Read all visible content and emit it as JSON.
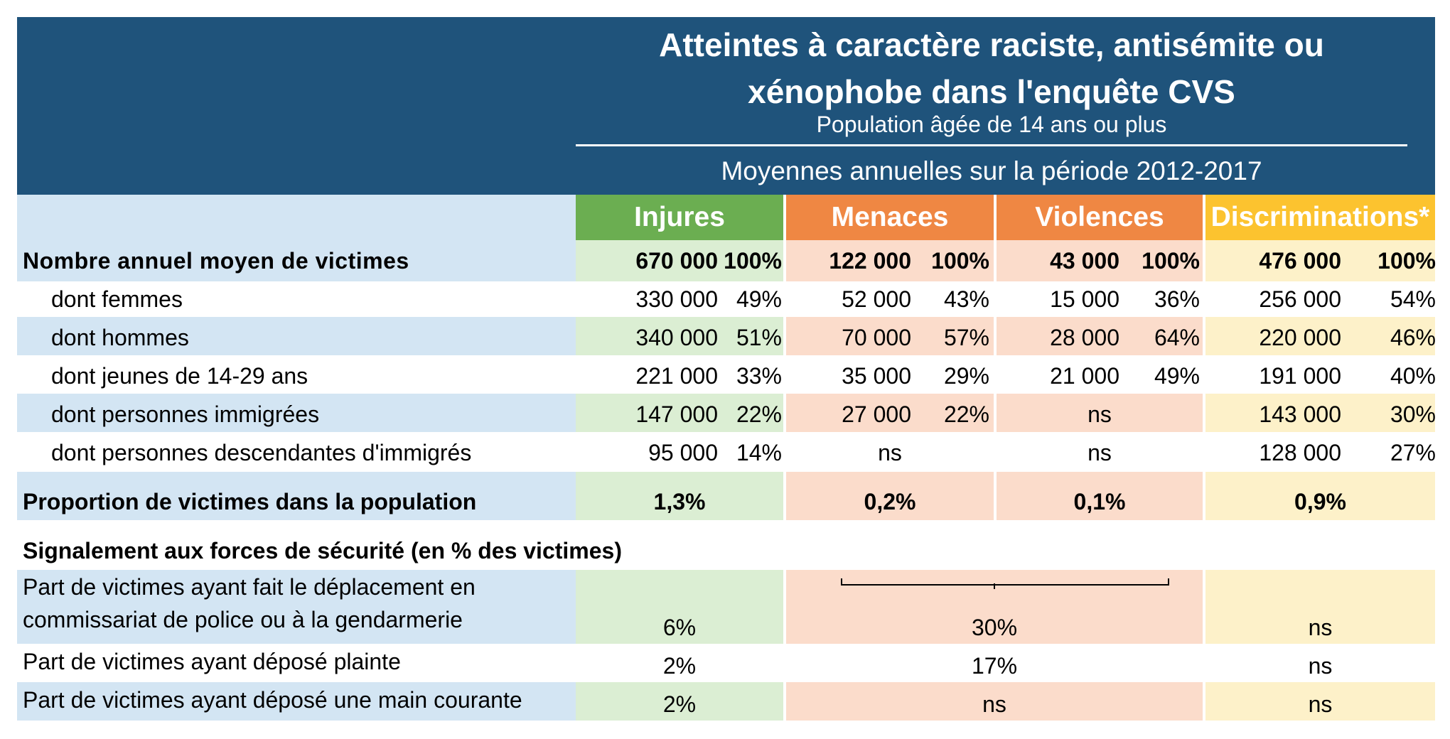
{
  "header": {
    "title_line1": "Atteintes à caractère raciste, antisémite ou",
    "title_line2": "xénophobe dans l'enquête CVS",
    "subtitle": "Population âgée de 14 ans ou plus",
    "period": "Moyennes annuelles sur la période 2012-2017"
  },
  "colors": {
    "header_bg": "#1f537b",
    "label_bg": "#d3e5f3",
    "injures": "#6bae51",
    "menaces": "#ef8743",
    "violences": "#ef8743",
    "discriminations": "#fcc32f",
    "injures_light": "#dbeed3",
    "menaces_light": "#fbdccb",
    "discriminations_light": "#fdf1c9"
  },
  "columns": [
    "Injures",
    "Menaces",
    "Violences",
    "Discriminations*"
  ],
  "rows": {
    "total": {
      "label": "Nombre annuel moyen de victimes",
      "values": [
        [
          "670 000",
          "100%"
        ],
        [
          "122 000",
          "100%"
        ],
        [
          "43 000",
          "100%"
        ],
        [
          "476 000",
          "100%"
        ]
      ]
    },
    "femmes": {
      "label": "dont femmes",
      "values": [
        [
          "330 000",
          "49%"
        ],
        [
          "52 000",
          "43%"
        ],
        [
          "15 000",
          "36%"
        ],
        [
          "256 000",
          "54%"
        ]
      ]
    },
    "hommes": {
      "label": "dont hommes",
      "values": [
        [
          "340 000",
          "51%"
        ],
        [
          "70 000",
          "57%"
        ],
        [
          "28 000",
          "64%"
        ],
        [
          "220 000",
          "46%"
        ]
      ]
    },
    "jeunes": {
      "label": "dont jeunes de 14-29 ans",
      "values": [
        [
          "221 000",
          "33%"
        ],
        [
          "35 000",
          "29%"
        ],
        [
          "21 000",
          "49%"
        ],
        [
          "191 000",
          "40%"
        ]
      ]
    },
    "immigrees": {
      "label": "dont personnes immigrées",
      "values": [
        [
          "147 000",
          "22%"
        ],
        [
          "27 000",
          "22%"
        ],
        [
          "ns",
          ""
        ],
        [
          "143 000",
          "30%"
        ]
      ]
    },
    "descendantes": {
      "label": "dont personnes descendantes d'immigrés",
      "values": [
        [
          "95 000",
          "14%"
        ],
        [
          "ns",
          ""
        ],
        [
          "ns",
          ""
        ],
        [
          "128 000",
          "27%"
        ]
      ]
    }
  },
  "proportion": {
    "label": "Proportion de victimes dans la population",
    "values": [
      "1,3%",
      "0,2%",
      "0,1%",
      "0,9%"
    ]
  },
  "signalement": {
    "heading": "Signalement aux forces de sécurité (en % des victimes)",
    "deplacement": {
      "label_line1": "Part de victimes ayant fait le déplacement en",
      "label_line2": "commissariat de police ou à la gendarmerie",
      "injures": "6%",
      "menaces_violences": "30%",
      "discriminations": "ns"
    },
    "plainte": {
      "label": "Part de victimes ayant déposé plainte",
      "injures": "2%",
      "menaces_violences": "17%",
      "discriminations": "ns"
    },
    "main_courante": {
      "label": "Part de victimes ayant déposé une main courante",
      "injures": "2%",
      "menaces_violences": "ns",
      "discriminations": "ns"
    }
  }
}
